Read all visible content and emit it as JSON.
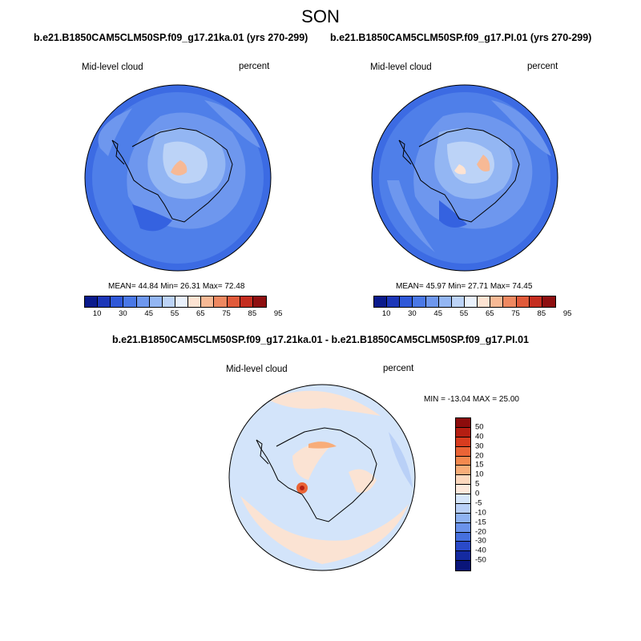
{
  "title": "SON",
  "panels": [
    {
      "case_title": "b.e21.B1850CAM5CLM50SP.f09_g17.21ka.01 (yrs 270-299)",
      "variable": "Mid-level cloud",
      "units": "percent",
      "stats": "MEAN=  44.84  Min=  26.31  Max=  72.48",
      "colorbar_labels": [
        "10",
        "30",
        "45",
        "55",
        "65",
        "75",
        "85",
        "95"
      ]
    },
    {
      "case_title": "b.e21.B1850CAM5CLM50SP.f09_g17.PI.01 (yrs 270-299)",
      "variable": "Mid-level cloud",
      "units": "percent",
      "stats": "MEAN=  45.97  Min=  27.71  Max=  74.45",
      "colorbar_labels": [
        "10",
        "30",
        "45",
        "55",
        "65",
        "75",
        "85",
        "95"
      ]
    }
  ],
  "diff_panel": {
    "title": "b.e21.B1850CAM5CLM50SP.f09_g17.21ka.01 - b.e21.B1850CAM5CLM50SP.f09_g17.PI.01",
    "variable": "Mid-level cloud",
    "units": "percent",
    "stats": "MIN = -13.04 MAX =  25.00",
    "colorbar_labels": [
      "50",
      "40",
      "30",
      "20",
      "15",
      "10",
      "5",
      "0",
      "-5",
      "-10",
      "-15",
      "-20",
      "-30",
      "-40",
      "-50"
    ]
  },
  "colors": {
    "abs_scale": [
      "#0a1a8c",
      "#1c36b8",
      "#2f58d8",
      "#4a78e6",
      "#6e97ee",
      "#93b6f3",
      "#bcd3f7",
      "#e9f1fc",
      "#fde3d2",
      "#f7b995",
      "#ee8860",
      "#e05a3a",
      "#c42d1f",
      "#8e0f10"
    ],
    "diff_scale": [
      "#8c0c0c",
      "#b51e12",
      "#d83c1f",
      "#ea6436",
      "#f3894f",
      "#f8ad79",
      "#fdd8bd",
      "#fde9dc",
      "#d6e6fb",
      "#b9d0f7",
      "#8fb3f2",
      "#6b93ea",
      "#4670de",
      "#2a4ac9",
      "#142aa0",
      "#0a157a"
    ],
    "ocean_abs": "#4f7fe9",
    "ocean_abs_dark": "#3562e0",
    "ocean_diff": "#d3e4fa",
    "diff_warm": "#fbe3d3"
  }
}
